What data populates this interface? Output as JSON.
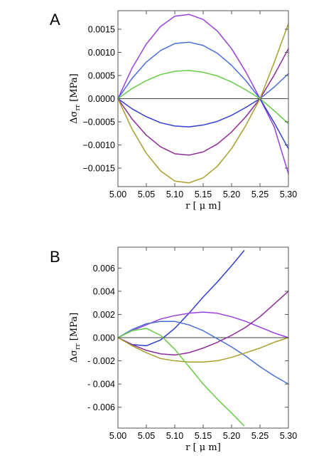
{
  "chart_data": [
    {
      "panel_label": "A",
      "type": "line",
      "xlabel": "r [ μ m]",
      "ylabel": "Δσ",
      "ylabel_sub": "rr",
      "ylabel_unit": " [MPa]",
      "xlim": [
        5.0,
        5.3
      ],
      "ylim": [
        -0.0019,
        0.0019
      ],
      "zero_line": true,
      "grid": false,
      "x_ticks": [
        5.0,
        5.05,
        5.1,
        5.15,
        5.2,
        5.25,
        5.3
      ],
      "x_tick_labels": [
        "5.00",
        "5.05",
        "5.10",
        "5.15",
        "5.20",
        "5.25",
        "5.30"
      ],
      "y_ticks": [
        0.0015,
        0.001,
        0.0005,
        0,
        -0.0005,
        -0.001,
        -0.0015
      ],
      "y_tick_labels": [
        "0.0015",
        "0.0010",
        "0.0005",
        "0.0000",
        "−0.0005",
        "−0.0010",
        "−0.0015"
      ],
      "x": [
        5.0,
        5.025,
        5.05,
        5.075,
        5.1,
        5.125,
        5.15,
        5.175,
        5.2,
        5.225,
        5.25,
        5.275,
        5.3
      ],
      "series": [
        {
          "color": "#9a3fe0",
          "values": [
            0,
            0.00066,
            0.00118,
            0.00156,
            0.00178,
            0.00182,
            0.00171,
            0.00146,
            0.00108,
            0.00058,
            0,
            -0.00061,
            -0.00162
          ]
        },
        {
          "color": "#4a6fd8",
          "values": [
            0,
            0.00044,
            0.00079,
            0.00104,
            0.00119,
            0.00122,
            0.00115,
            0.00098,
            0.00072,
            0.00039,
            0,
            0.00025,
            0.00054
          ]
        },
        {
          "color": "#66cc44",
          "values": [
            0,
            0.00022,
            0.00039,
            0.00052,
            0.00059,
            0.00061,
            0.00057,
            0.00049,
            0.00036,
            0.00019,
            0,
            -0.00026,
            -0.00054
          ]
        },
        {
          "color": "#2f3fcc",
          "values": [
            0,
            -0.00022,
            -0.00039,
            -0.00052,
            -0.00059,
            -0.00061,
            -0.00057,
            -0.00049,
            -0.00036,
            -0.00019,
            0,
            -0.00052,
            -0.00108
          ]
        },
        {
          "color": "#8e2a9a",
          "values": [
            0,
            -0.00044,
            -0.00079,
            -0.00104,
            -0.00119,
            -0.00122,
            -0.00115,
            -0.00098,
            -0.00072,
            -0.00039,
            0,
            0.00051,
            0.00108
          ]
        },
        {
          "color": "#a8a02a",
          "values": [
            0,
            -0.00066,
            -0.00118,
            -0.00156,
            -0.00178,
            -0.00182,
            -0.00171,
            -0.00146,
            -0.00108,
            -0.00058,
            0,
            0.00078,
            0.00162
          ]
        }
      ]
    },
    {
      "panel_label": "B",
      "type": "line",
      "xlabel": "r [ μ m]",
      "ylabel": "Δσ",
      "ylabel_sub": "rr",
      "ylabel_unit": " [MPa]",
      "xlim": [
        5.0,
        5.3
      ],
      "ylim": [
        -0.0078,
        0.0078
      ],
      "zero_line": true,
      "grid": false,
      "x_ticks": [
        5.0,
        5.05,
        5.1,
        5.15,
        5.2,
        5.25,
        5.3
      ],
      "x_tick_labels": [
        "5.00",
        "5.05",
        "5.10",
        "5.15",
        "5.20",
        "5.25",
        "5.30"
      ],
      "y_ticks": [
        0.006,
        0.004,
        0.002,
        0,
        -0.002,
        -0.004,
        -0.006
      ],
      "y_tick_labels": [
        "0.006",
        "0.004",
        "0.002",
        "0.000",
        "- 0.002",
        "- 0.004",
        "- 0.006"
      ],
      "series": [
        {
          "color": "#2f3fcc",
          "x": [
            5.0,
            5.025,
            5.05,
            5.075,
            5.1,
            5.125,
            5.15,
            5.175,
            5.2,
            5.222
          ],
          "values": [
            0,
            -0.0006,
            -0.0007,
            -0.0002,
            0.0008,
            0.0021,
            0.0035,
            0.0048,
            0.0062,
            0.0075
          ]
        },
        {
          "color": "#9a3fe0",
          "x": [
            5.0,
            5.025,
            5.05,
            5.075,
            5.1,
            5.125,
            5.15,
            5.175,
            5.2,
            5.225,
            5.25,
            5.275,
            5.3
          ],
          "values": [
            0,
            0.0006,
            0.0011,
            0.0016,
            0.0019,
            0.0021,
            0.0022,
            0.0021,
            0.0018,
            0.0014,
            0.0009,
            0.0004,
            0
          ]
        },
        {
          "color": "#4a6fd8",
          "x": [
            5.0,
            5.025,
            5.05,
            5.075,
            5.1,
            5.125,
            5.15,
            5.175,
            5.2,
            5.225,
            5.25,
            5.275,
            5.3
          ],
          "values": [
            0,
            0.0007,
            0.0012,
            0.0014,
            0.0014,
            0.0011,
            0.0006,
            -0.0001,
            -0.0008,
            -0.0016,
            -0.0025,
            -0.0033,
            -0.004
          ]
        },
        {
          "color": "#8e2a9a",
          "x": [
            5.0,
            5.025,
            5.05,
            5.075,
            5.1,
            5.125,
            5.15,
            5.175,
            5.2,
            5.225,
            5.25,
            5.275,
            5.3
          ],
          "values": [
            0,
            -0.0006,
            -0.0011,
            -0.0014,
            -0.0015,
            -0.0013,
            -0.0009,
            -0.0004,
            0.0002,
            0.0009,
            0.0018,
            0.0029,
            0.004
          ]
        },
        {
          "color": "#a8a02a",
          "x": [
            5.0,
            5.025,
            5.05,
            5.075,
            5.1,
            5.125,
            5.15,
            5.175,
            5.2,
            5.225,
            5.25,
            5.275,
            5.3
          ],
          "values": [
            0,
            -0.0007,
            -0.0013,
            -0.0018,
            -0.002,
            -0.0021,
            -0.0021,
            -0.002,
            -0.0017,
            -0.0013,
            -0.0009,
            -0.0004,
            0
          ]
        },
        {
          "color": "#66cc44",
          "x": [
            5.0,
            5.025,
            5.05,
            5.075,
            5.1,
            5.125,
            5.15,
            5.175,
            5.2,
            5.222
          ],
          "values": [
            0,
            0.0006,
            0.0008,
            0.0002,
            -0.001,
            -0.0025,
            -0.004,
            -0.0053,
            -0.0065,
            -0.0076
          ]
        }
      ]
    }
  ]
}
